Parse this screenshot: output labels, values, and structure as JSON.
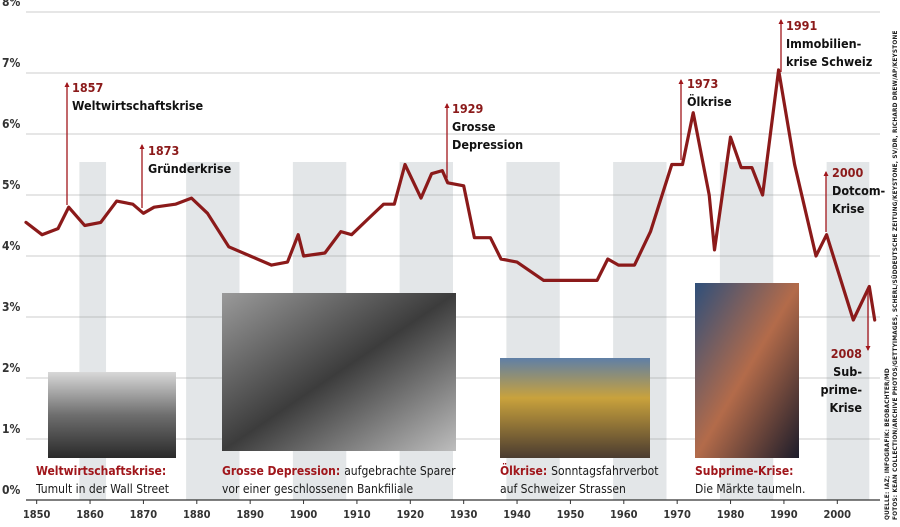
{
  "chart_data": {
    "type": "line",
    "color": "#8b1a1a",
    "x": [
      1848,
      1851,
      1854,
      1856,
      1859,
      1862,
      1865,
      1868,
      1870,
      1872,
      1876,
      1879,
      1882,
      1886,
      1890,
      1894,
      1897,
      1899,
      1900,
      1904,
      1907,
      1909,
      1912,
      1915,
      1917,
      1919,
      1922,
      1924,
      1926,
      1927,
      1930,
      1932,
      1935,
      1937,
      1940,
      1945,
      1950,
      1955,
      1957,
      1959,
      1962,
      1965,
      1969,
      1971,
      1973,
      1976,
      1977,
      1980,
      1982,
      1984,
      1986,
      1989,
      1992,
      1996,
      1998,
      2003,
      2006,
      2007
    ],
    "values": [
      4.55,
      4.35,
      4.45,
      4.8,
      4.5,
      4.55,
      4.9,
      4.85,
      4.7,
      4.8,
      4.85,
      4.95,
      4.7,
      4.15,
      4.0,
      3.85,
      3.9,
      4.35,
      4.0,
      4.05,
      4.4,
      4.35,
      4.6,
      4.85,
      4.85,
      5.5,
      4.95,
      5.35,
      5.4,
      5.2,
      5.15,
      4.3,
      4.3,
      3.95,
      3.9,
      3.6,
      3.6,
      3.6,
      3.95,
      3.85,
      3.85,
      4.4,
      5.5,
      5.5,
      6.35,
      5.0,
      4.1,
      5.95,
      5.45,
      5.45,
      5.0,
      7.05,
      5.5,
      4.0,
      4.35,
      2.95,
      3.5,
      2.95
    ],
    "xlim": [
      1848,
      2008
    ],
    "xticks": [
      1850,
      1860,
      1870,
      1880,
      1890,
      1900,
      1910,
      1920,
      1930,
      1940,
      1950,
      1960,
      1970,
      1980,
      1990,
      2000
    ],
    "ylim": [
      0,
      8
    ],
    "yticks": [
      {
        "value": 0,
        "label": "0%"
      },
      {
        "value": 1,
        "label": "1%"
      },
      {
        "value": 2,
        "label": "2%"
      },
      {
        "value": 3,
        "label": "3%"
      },
      {
        "value": 4,
        "label": "4%"
      },
      {
        "value": 5,
        "label": "5%"
      },
      {
        "value": 6,
        "label": "6%"
      },
      {
        "value": 7,
        "label": "7%"
      },
      {
        "value": 8,
        "label": "8%"
      }
    ],
    "grid": true,
    "shaded_periods": [
      [
        1858,
        1863
      ],
      [
        1878,
        1888
      ],
      [
        1898,
        1908
      ],
      [
        1918,
        1928
      ],
      [
        1938,
        1948
      ],
      [
        1958,
        1968
      ],
      [
        1978,
        1988
      ],
      [
        1998,
        2006
      ]
    ],
    "annotations": [
      {
        "year": "1857",
        "lines": [
          "Weltwirtschaftskrise"
        ]
      },
      {
        "year": "1873",
        "lines": [
          "Gründerkrise"
        ]
      },
      {
        "year": "1929",
        "lines": [
          "Grosse",
          "Depression"
        ]
      },
      {
        "year": "1973",
        "lines": [
          "Ölkrise"
        ]
      },
      {
        "year": "1991",
        "lines": [
          "Immobilien-",
          "krise Schweiz"
        ]
      },
      {
        "year": "2000",
        "lines": [
          "Dotcom-",
          "Krise"
        ]
      },
      {
        "year": "2008",
        "lines": [
          "Sub-",
          "prime-",
          "Krise"
        ]
      }
    ],
    "captions": [
      {
        "label": "Weltwirtschaftskrise:",
        "lines": [
          "",
          "Tumult in der Wall Street"
        ]
      },
      {
        "label": "Grosse Depression:",
        "lines": [
          "aufgebrachte Sparer",
          "vor einer geschlossenen Bankfiliale"
        ]
      },
      {
        "label": "Ölkrise:",
        "lines": [
          "Sonntagsfahrverbot",
          "auf Schweizer Strassen"
        ]
      },
      {
        "label": "Subprime-Krise:",
        "lines": [
          "",
          "Die Märkte taumeln."
        ]
      }
    ],
    "source": [
      "QUELLE: IAZ; INFOGRAFIK: BEOBACHTER/MD",
      "FOTOS: KEAN COLLECTION/ARCHIVE PHOTOS/GETTYIMAGES, SCHERL/SÜDDEUTSCHE ZEITUNG/KEYSTONE, SV/DR, RICHARD DREW/AP/KEYSTONE"
    ]
  }
}
